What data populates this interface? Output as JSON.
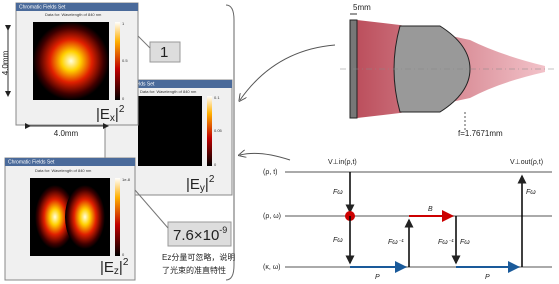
{
  "windows": [
    {
      "title": "Chromatic Fields Set",
      "subtitle": "Data for: Wavelength of 840 nm",
      "cbar": [
        "1",
        "0.5",
        "0"
      ]
    },
    {
      "title": "Chromatic Fields Set",
      "subtitle": "Data for: Wavelength of 840 nm",
      "cbar": [
        "0.1",
        "0.05",
        "0"
      ]
    },
    {
      "title": "Chromatic Fields Set",
      "subtitle": "Data for: Wavelength of 840 nm",
      "cbar": [
        "1e-8",
        "0"
      ]
    }
  ],
  "dimensions": {
    "vertical": "4.0mm",
    "horizontal": "4.0mm"
  },
  "labels": {
    "ex": {
      "base": "|E",
      "sub": "x",
      "close": "|",
      "sup": "2"
    },
    "ey": {
      "base": "|E",
      "sub": "y",
      "close": "|",
      "sup": "2"
    },
    "ez": {
      "base": "|E",
      "sub": "z",
      "close": "|",
      "sup": "2"
    },
    "ex_peak": "1",
    "ez_peak": {
      "base": "7.6×10",
      "sup": "-9"
    }
  },
  "caption": [
    "Ez分量可忽略，说明",
    "了光束的准直特性"
  ],
  "lens": {
    "thickness": "5mm",
    "focal": "f=1.7671mm"
  },
  "flow": {
    "rows": [
      "(ρ, t)",
      "(ρ, ω)",
      "(κ, ω)"
    ],
    "vin": "V⊥in(ρ,t)",
    "vout": "V⊥out(ρ,t)",
    "ops": [
      "Fω",
      "Fω",
      "Fω⁻¹",
      "B",
      "Fω⁻¹",
      "Fω",
      "P",
      "P",
      "Fω"
    ]
  }
}
